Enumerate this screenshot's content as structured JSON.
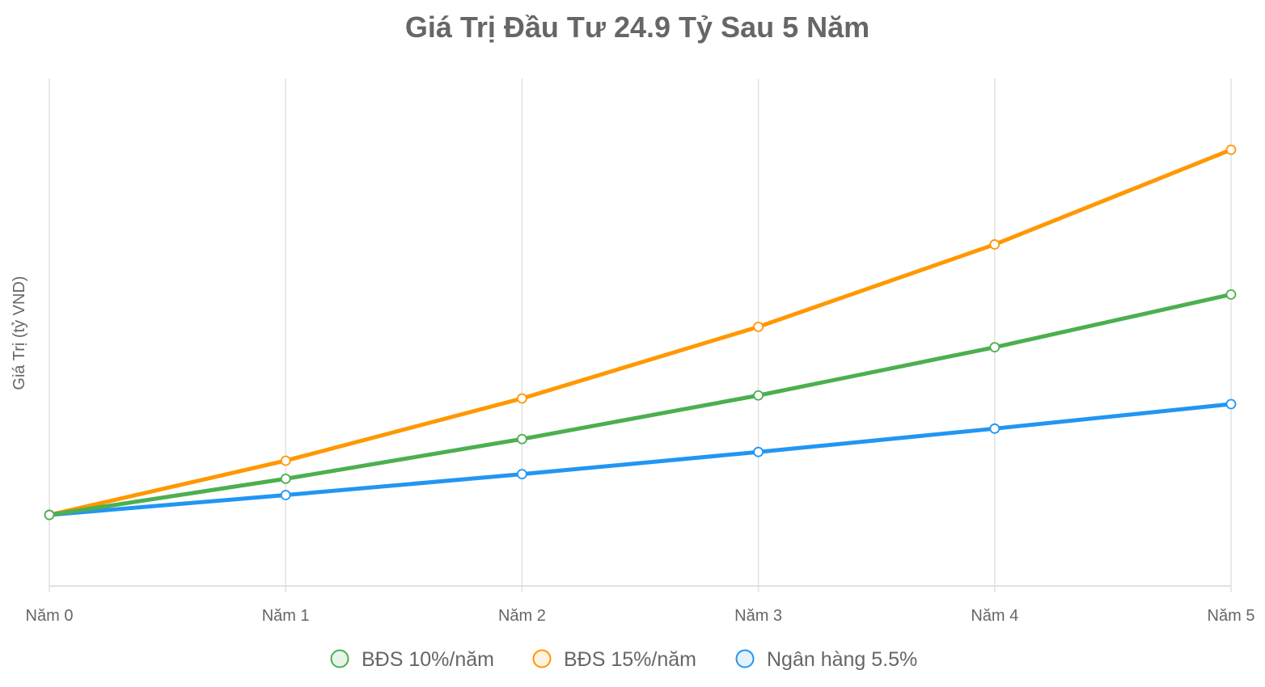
{
  "chart_data": {
    "type": "line",
    "title": "Giá Trị Đầu Tư 24.9 Tỷ Sau 5 Năm",
    "ylabel": "Giá Trị (tỷ VND)",
    "xlabel": "",
    "categories": [
      "Năm 0",
      "Năm 1",
      "Năm 2",
      "Năm 3",
      "Năm 4",
      "Năm 5"
    ],
    "ylim": [
      20,
      55
    ],
    "grid": true,
    "legend": "bottom",
    "series": [
      {
        "name": "BĐS 10%/năm",
        "color": "#4caf50",
        "values": [
          24.9,
          27.39,
          30.13,
          33.14,
          36.46,
          40.1
        ]
      },
      {
        "name": "BĐS 15%/năm",
        "color": "#ff9800",
        "values": [
          24.9,
          28.64,
          32.93,
          37.87,
          43.55,
          50.08
        ]
      },
      {
        "name": "Ngân hàng 5.5%",
        "color": "#2196f3",
        "values": [
          24.9,
          26.27,
          27.71,
          29.24,
          30.85,
          32.54
        ]
      }
    ]
  }
}
